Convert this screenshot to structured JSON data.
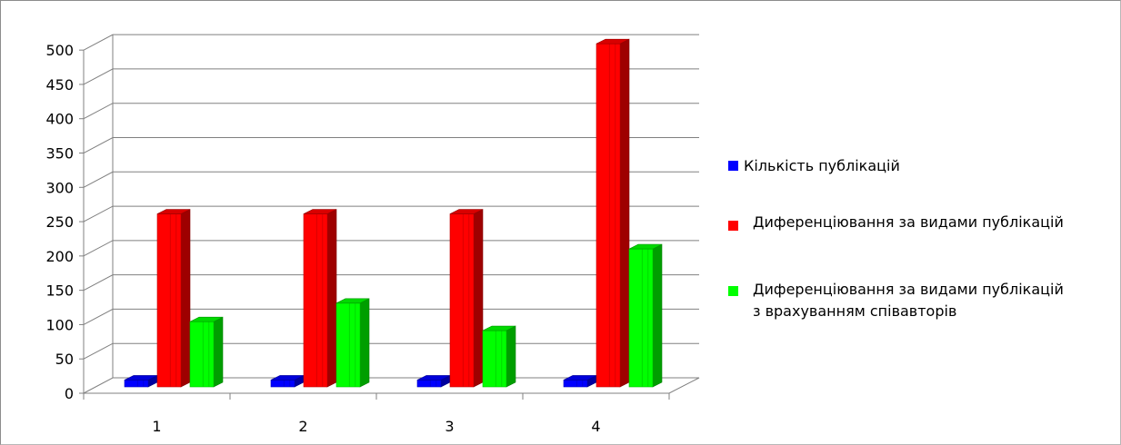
{
  "chart_data": {
    "type": "bar",
    "categories": [
      "1",
      "2",
      "3",
      "4"
    ],
    "series": [
      {
        "name": "Кількість публікацій",
        "values": [
          10,
          10,
          10,
          10
        ],
        "color": "#0000ff"
      },
      {
        "name": "Диференціювання за видами публікацій",
        "values": [
          252,
          252,
          252,
          500
        ],
        "color": "#ff0000"
      },
      {
        "name": "Диференціювання за видами публікацій з врахуванням співавторів",
        "values": [
          95,
          122,
          82,
          201
        ],
        "color": "#00ff00"
      }
    ],
    "y_ticks": [
      "0",
      "50",
      "100",
      "150",
      "200",
      "250",
      "300",
      "350",
      "400",
      "450",
      "500"
    ],
    "ylim": [
      0,
      500
    ],
    "grid": true,
    "legend_position": "right"
  },
  "legend": {
    "item1": {
      "label": "Кількість публікацій",
      "color": "#0000ff"
    },
    "item2": {
      "label": "Диференціювання за видами публікацій",
      "color": "#ff0000"
    },
    "item3": {
      "line1": "Диференціювання за видами публікацій",
      "line2": "з врахуванням співавторів",
      "color": "#00ff00"
    }
  }
}
